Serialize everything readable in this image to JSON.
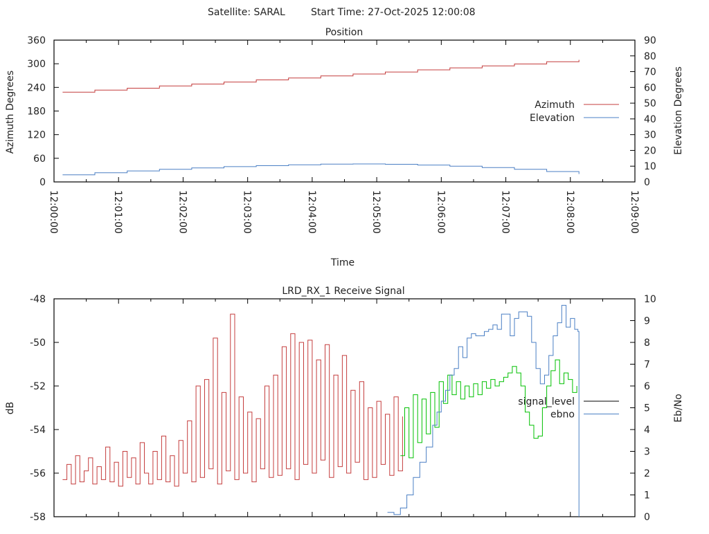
{
  "header": {
    "satellite": "Satellite: SARAL",
    "start_time": "Start Time: 27-Oct-2025 12:00:08"
  },
  "colors": {
    "red": "#c43c3c",
    "blue": "#4a7fc4",
    "green": "#00c000",
    "black": "#000000"
  },
  "chart_data": [
    {
      "type": "line",
      "title": "Position",
      "xlabel": "Time",
      "ylabel": "Azimuth Degrees",
      "y2label": "Elevation Degrees",
      "xlim_seconds": [
        0,
        540
      ],
      "xticks": [
        "12:00:00",
        "12:01:00",
        "12:02:00",
        "12:03:00",
        "12:04:00",
        "12:05:00",
        "12:06:00",
        "12:07:00",
        "12:08:00",
        "12:09:00"
      ],
      "ylim": [
        0,
        360
      ],
      "yticks": [
        "0",
        "60",
        "120",
        "180",
        "240",
        "300",
        "360"
      ],
      "y2lim": [
        0,
        90
      ],
      "y2ticks": [
        "0",
        "10",
        "20",
        "30",
        "40",
        "50",
        "60",
        "70",
        "80",
        "90"
      ],
      "legend_position": "right",
      "series": [
        {
          "name": "Azimuth",
          "axis": "y",
          "color": "#c43c3c",
          "t": [
            8,
            38,
            68,
            98,
            128,
            158,
            188,
            218,
            248,
            278,
            308,
            338,
            368,
            398,
            428,
            458,
            488
          ],
          "values": [
            228,
            233,
            238,
            243.5,
            248.5,
            253.5,
            259,
            264,
            269,
            274,
            279,
            284.5,
            289.5,
            294.5,
            299.5,
            305,
            310
          ]
        },
        {
          "name": "Elevation",
          "axis": "y2",
          "color": "#4a7fc4",
          "t": [
            8,
            38,
            68,
            98,
            128,
            158,
            188,
            218,
            248,
            278,
            308,
            338,
            368,
            398,
            428,
            458,
            488
          ],
          "values": [
            4.5,
            5.8,
            7.0,
            8.0,
            8.9,
            9.7,
            10.3,
            10.9,
            11.3,
            11.4,
            11.2,
            10.7,
            10.0,
            9.1,
            8.0,
            6.6,
            5.0
          ]
        }
      ]
    },
    {
      "type": "line",
      "title": "LRD_RX_1 Receive Signal",
      "ylabel": "dB",
      "y2label": "Eb/No",
      "xlim_seconds": [
        0,
        540
      ],
      "ylim": [
        -58,
        -48
      ],
      "yticks": [
        "-58",
        "-56",
        "-54",
        "-52",
        "-50",
        "-48"
      ],
      "y2lim": [
        0,
        10
      ],
      "y2ticks": [
        "0",
        "1",
        "2",
        "3",
        "4",
        "5",
        "6",
        "7",
        "8",
        "9",
        "10"
      ],
      "legend_position": "right",
      "legend": [
        {
          "name": "signal_level",
          "color": "#000000"
        },
        {
          "name": "ebno",
          "color": "#4a7fc4"
        }
      ],
      "series": [
        {
          "name": "signal_level (segment 1)",
          "axis": "y",
          "color": "#c43c3c",
          "t_start": 8,
          "t_step": 4,
          "values": [
            -56.3,
            -55.6,
            -56.5,
            -55.2,
            -56.4,
            -55.9,
            -55.3,
            -56.5,
            -55.7,
            -56.3,
            -54.8,
            -56.4,
            -55.5,
            -56.6,
            -55.0,
            -56.2,
            -55.3,
            -56.5,
            -54.6,
            -56.0,
            -56.5,
            -55.0,
            -56.3,
            -54.3,
            -56.4,
            -55.2,
            -56.6,
            -54.5,
            -56.0,
            -53.6,
            -56.4,
            -52.0,
            -56.2,
            -51.7,
            -55.8,
            -49.8,
            -56.5,
            -52.3,
            -55.9,
            -48.7,
            -56.3,
            -52.5,
            -56.0,
            -53.2,
            -56.4,
            -53.5,
            -55.8,
            -52.0,
            -56.2,
            -51.5,
            -56.1,
            -50.2,
            -55.8,
            -49.6,
            -56.3,
            -50.0,
            -55.6,
            -49.9,
            -56.0,
            -50.8,
            -55.4,
            -50.1,
            -56.2,
            -51.5,
            -55.7,
            -50.6,
            -56.0,
            -52.2,
            -55.5,
            -51.8,
            -56.3,
            -53.0,
            -56.2,
            -52.7,
            -55.6,
            -53.3,
            -56.1,
            -52.5,
            -55.9,
            -53.4
          ]
        },
        {
          "name": "signal_level (segment 2)",
          "axis": "y",
          "color": "#00c000",
          "t_start": 322,
          "t_step": 4,
          "values": [
            -55.2,
            -53.0,
            -55.3,
            -52.4,
            -54.6,
            -52.6,
            -54.2,
            -52.3,
            -53.9,
            -51.8,
            -52.8,
            -51.5,
            -52.4,
            -51.8,
            -52.6,
            -52.0,
            -52.5,
            -51.9,
            -52.4,
            -51.8,
            -52.1,
            -51.7,
            -52.0,
            -51.8,
            -51.6,
            -51.4,
            -51.1,
            -51.4,
            -52.0,
            -53.2,
            -53.8,
            -54.4,
            -54.3,
            -53.0,
            -52.0,
            -51.3,
            -50.8,
            -51.9,
            -51.4,
            -51.7,
            -52.3,
            -52.0
          ]
        },
        {
          "name": "ebno",
          "axis": "y2",
          "color": "#4a7fc4",
          "t": [
            310,
            316,
            322,
            328,
            334,
            340,
            346,
            352,
            356,
            360,
            364,
            368,
            372,
            376,
            380,
            384,
            388,
            392,
            396,
            400,
            404,
            408,
            412,
            416,
            420,
            424,
            428,
            432,
            436,
            440,
            444,
            448,
            452,
            456,
            460,
            464,
            468,
            472,
            476,
            480,
            484,
            487,
            488
          ],
          "values": [
            0.2,
            0.1,
            0.4,
            1.0,
            1.8,
            2.5,
            3.2,
            4.2,
            4.8,
            5.3,
            5.8,
            6.5,
            6.8,
            7.8,
            7.3,
            8.2,
            8.4,
            8.3,
            8.3,
            8.5,
            8.6,
            8.8,
            8.6,
            9.3,
            9.3,
            8.3,
            9.1,
            9.4,
            9.4,
            9.2,
            8.0,
            6.8,
            6.1,
            6.5,
            7.4,
            8.3,
            8.9,
            9.7,
            8.7,
            9.1,
            8.6,
            8.5,
            0
          ]
        }
      ]
    }
  ]
}
